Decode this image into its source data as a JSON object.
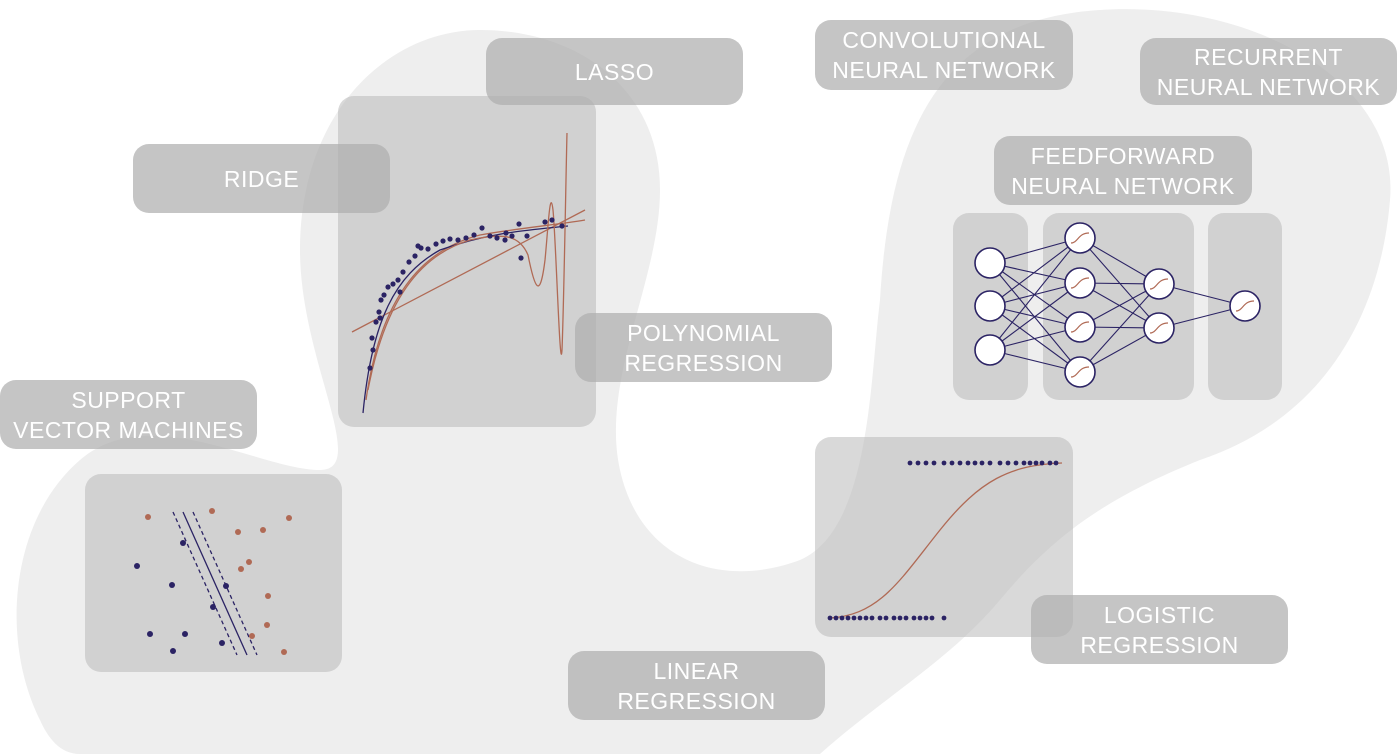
{
  "labels": {
    "lasso": [
      "LASSO"
    ],
    "ridge": [
      "RIDGE"
    ],
    "polynomial": [
      "POLYNOMIAL",
      "REGRESSION"
    ],
    "svm": [
      "SUPPORT",
      "VECTOR MACHINES"
    ],
    "cnn": [
      "CONVOLUTIONAL",
      "NEURAL NETWORK"
    ],
    "rnn": [
      "RECURRENT",
      "NEURAL NETWORK"
    ],
    "ffnn": [
      "FEEDFORWARD",
      "NEURAL NETWORK"
    ],
    "logistic": [
      "LOGISTIC",
      "REGRESSION"
    ],
    "linear": [
      "LINEAR",
      "REGRESSION"
    ]
  },
  "colors": {
    "blob": "#eeeeee",
    "navy": "#2b2364",
    "brown": "#b06a55",
    "panel": "#bdbdbd",
    "label_text": "#ffffff"
  },
  "icons": {
    "neuron_activation": "sigmoid-icon"
  }
}
